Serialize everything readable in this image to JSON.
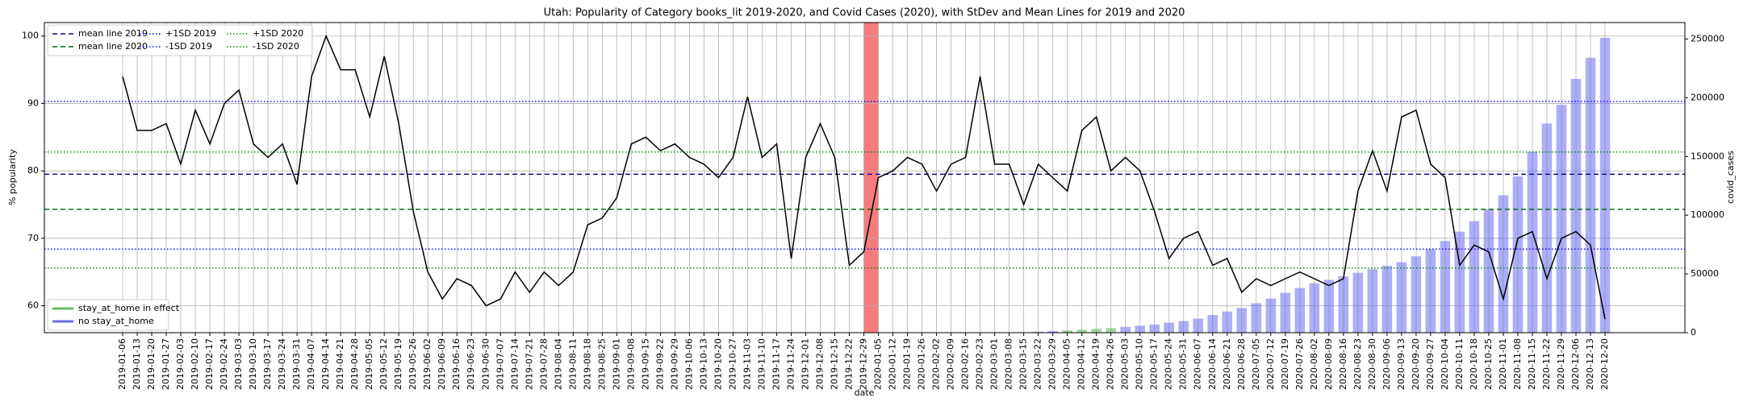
{
  "chart_data": {
    "type": "bar_line",
    "title": "Utah: Popularity of Category books_lit 2019-2020, and Covid Cases (2020), with StDev and Mean Lines for 2019 and 2020",
    "x_label": "date",
    "y_label": "% popularity",
    "y2_label": "covid_cases",
    "categories": [
      "2019-01-06",
      "2019-01-13",
      "2019-01-20",
      "2019-01-27",
      "2019-02-03",
      "2019-02-10",
      "2019-02-17",
      "2019-02-24",
      "2019-03-03",
      "2019-03-10",
      "2019-03-17",
      "2019-03-24",
      "2019-03-31",
      "2019-04-07",
      "2019-04-14",
      "2019-04-21",
      "2019-04-28",
      "2019-05-05",
      "2019-05-12",
      "2019-05-19",
      "2019-05-26",
      "2019-06-02",
      "2019-06-09",
      "2019-06-16",
      "2019-06-23",
      "2019-06-30",
      "2019-07-07",
      "2019-07-14",
      "2019-07-21",
      "2019-07-28",
      "2019-08-04",
      "2019-08-11",
      "2019-08-18",
      "2019-08-25",
      "2019-09-01",
      "2019-09-08",
      "2019-09-15",
      "2019-09-22",
      "2019-09-29",
      "2019-10-06",
      "2019-10-13",
      "2019-10-20",
      "2019-10-27",
      "2019-11-03",
      "2019-11-10",
      "2019-11-17",
      "2019-11-24",
      "2019-12-01",
      "2019-12-08",
      "2019-12-15",
      "2019-12-22",
      "2019-12-29",
      "2020-01-05",
      "2020-01-12",
      "2020-01-19",
      "2020-01-26",
      "2020-02-02",
      "2020-02-09",
      "2020-02-16",
      "2020-02-23",
      "2020-03-01",
      "2020-03-08",
      "2020-03-15",
      "2020-03-22",
      "2020-03-29",
      "2020-04-05",
      "2020-04-12",
      "2020-04-19",
      "2020-04-26",
      "2020-05-03",
      "2020-05-10",
      "2020-05-17",
      "2020-05-24",
      "2020-05-31",
      "2020-06-07",
      "2020-06-14",
      "2020-06-21",
      "2020-06-28",
      "2020-07-05",
      "2020-07-12",
      "2020-07-19",
      "2020-07-26",
      "2020-08-02",
      "2020-08-09",
      "2020-08-16",
      "2020-08-23",
      "2020-08-30",
      "2020-09-06",
      "2020-09-13",
      "2020-09-20",
      "2020-09-27",
      "2020-10-04",
      "2020-10-11",
      "2020-10-18",
      "2020-10-25",
      "2020-11-01",
      "2020-11-08",
      "2020-11-15",
      "2020-11-22",
      "2020-11-29",
      "2020-12-06",
      "2020-12-13",
      "2020-12-20"
    ],
    "popularity": {
      "color": "#000000",
      "values": [
        94,
        86,
        86,
        87,
        81,
        89,
        84,
        90,
        92,
        84,
        82,
        84,
        78,
        94,
        100,
        95,
        95,
        88,
        97,
        87,
        74,
        65,
        61,
        64,
        63,
        60,
        61,
        65,
        62,
        65,
        63,
        65,
        72,
        73,
        76,
        84,
        85,
        83,
        84,
        82,
        81,
        79,
        82,
        91,
        82,
        84,
        67,
        82,
        87,
        82,
        66,
        68,
        79,
        80,
        82,
        81,
        77,
        81,
        82,
        94,
        81,
        81,
        75,
        81,
        79,
        77,
        86,
        88,
        80,
        82,
        80,
        74,
        67,
        70,
        71,
        66,
        67,
        62,
        64,
        63,
        64,
        65,
        64,
        63,
        64,
        77,
        83,
        77,
        88,
        89,
        81,
        79,
        66,
        69,
        68,
        61,
        70,
        71,
        64,
        70,
        71,
        69,
        58
      ]
    },
    "series": [
      {
        "name": "stay_at_home in effect",
        "color": "#6ab86a",
        "opacity": 0.6,
        "axis": "y2",
        "values": [
          null,
          null,
          null,
          null,
          null,
          null,
          null,
          null,
          null,
          null,
          null,
          null,
          null,
          null,
          null,
          null,
          null,
          null,
          null,
          null,
          null,
          null,
          null,
          null,
          null,
          null,
          null,
          null,
          null,
          null,
          null,
          null,
          null,
          null,
          null,
          null,
          null,
          null,
          null,
          null,
          null,
          null,
          null,
          null,
          null,
          null,
          null,
          null,
          null,
          null,
          null,
          null,
          null,
          null,
          null,
          null,
          null,
          null,
          null,
          null,
          null,
          null,
          null,
          null,
          null,
          2000,
          2600,
          3300,
          4000,
          null,
          null,
          null,
          null,
          null,
          null,
          null,
          null,
          null,
          null,
          null,
          null,
          null,
          null,
          null,
          null,
          null,
          null,
          null,
          null,
          null,
          null,
          null,
          null,
          null,
          null,
          null,
          null,
          null,
          null,
          null,
          null,
          null,
          null
        ]
      },
      {
        "name": "no stay_at_home",
        "color": "#6b6bf0",
        "opacity": 0.55,
        "axis": "y2",
        "values": [
          null,
          null,
          null,
          null,
          null,
          null,
          null,
          null,
          null,
          null,
          null,
          null,
          null,
          null,
          null,
          null,
          null,
          null,
          null,
          null,
          null,
          null,
          null,
          null,
          null,
          null,
          null,
          null,
          null,
          null,
          null,
          null,
          null,
          null,
          null,
          null,
          null,
          null,
          null,
          null,
          null,
          null,
          null,
          null,
          null,
          null,
          null,
          null,
          null,
          null,
          null,
          null,
          null,
          null,
          null,
          null,
          null,
          null,
          null,
          null,
          null,
          null,
          300,
          800,
          1500,
          null,
          null,
          null,
          null,
          5000,
          6000,
          7000,
          8500,
          10000,
          12000,
          15000,
          18000,
          21000,
          25000,
          29000,
          34000,
          38000,
          42000,
          45000,
          48000,
          51000,
          54000,
          57000,
          60000,
          65000,
          71000,
          78000,
          86000,
          95000,
          105000,
          117000,
          133000,
          154000,
          178000,
          194000,
          216000,
          234000,
          251000
        ]
      }
    ],
    "hlines": [
      {
        "name": "mean line 2019",
        "value": 79.5,
        "color": "#00008b",
        "dash": "6,4"
      },
      {
        "name": "mean line 2020",
        "value": 74.3,
        "color": "#006400",
        "dash": "6,4"
      },
      {
        "name": "+1SD 2019",
        "value": 90.3,
        "color": "#0000ff",
        "dash": "1.5,2.5"
      },
      {
        "name": "-1SD 2019",
        "value": 68.4,
        "color": "#0000ff",
        "dash": "1.5,2.5"
      },
      {
        "name": "+1SD 2020",
        "value": 82.8,
        "color": "#008000",
        "dash": "1.5,2.5"
      },
      {
        "name": "-1SD 2020",
        "value": 65.6,
        "color": "#008000",
        "dash": "1.5,2.5"
      }
    ],
    "highlight": {
      "from": "2019-12-29",
      "to": "2020-01-05",
      "color": "#f47c7c"
    },
    "ylim": [
      56,
      102
    ],
    "yticks": [
      60,
      70,
      80,
      90,
      100
    ],
    "y2lim": [
      0,
      264000
    ],
    "y2ticks": [
      0,
      50000,
      100000,
      150000,
      200000,
      250000
    ],
    "grid": true,
    "lines_legend": "upper left",
    "bars_legend": "lower left"
  }
}
